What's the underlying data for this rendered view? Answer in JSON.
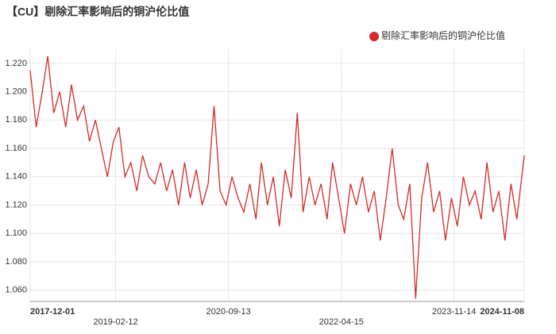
{
  "chart_data": {
    "type": "line",
    "title": "【CU】剔除汇率影响后的铜沪伦比值",
    "series": [
      {
        "name": "剔除汇率影响后的铜沪伦比值",
        "color": "#d42a2a",
        "values": [
          1.215,
          1.175,
          1.2,
          1.225,
          1.185,
          1.2,
          1.175,
          1.205,
          1.18,
          1.19,
          1.165,
          1.18,
          1.16,
          1.14,
          1.165,
          1.175,
          1.14,
          1.15,
          1.13,
          1.155,
          1.14,
          1.135,
          1.15,
          1.13,
          1.145,
          1.12,
          1.15,
          1.125,
          1.145,
          1.12,
          1.135,
          1.19,
          1.13,
          1.12,
          1.14,
          1.125,
          1.115,
          1.135,
          1.11,
          1.15,
          1.12,
          1.14,
          1.105,
          1.145,
          1.125,
          1.185,
          1.115,
          1.14,
          1.12,
          1.135,
          1.11,
          1.15,
          1.125,
          1.1,
          1.135,
          1.12,
          1.14,
          1.115,
          1.13,
          1.095,
          1.125,
          1.16,
          1.12,
          1.11,
          1.135,
          1.054,
          1.125,
          1.15,
          1.115,
          1.13,
          1.095,
          1.125,
          1.105,
          1.14,
          1.12,
          1.13,
          1.11,
          1.15,
          1.115,
          1.13,
          1.095,
          1.135,
          1.11,
          1.155
        ]
      }
    ],
    "x": [
      "2017-12-01",
      "2018-01-01",
      "2018-02-01",
      "2018-03-01",
      "2018-04-01",
      "2018-05-01",
      "2018-06-01",
      "2018-07-01",
      "2018-08-01",
      "2018-09-01",
      "2018-10-01",
      "2018-11-01",
      "2018-12-01",
      "2019-01-01",
      "2019-02-01",
      "2019-03-01",
      "2019-04-01",
      "2019-05-01",
      "2019-06-01",
      "2019-07-01",
      "2019-08-01",
      "2019-09-01",
      "2019-10-01",
      "2019-11-01",
      "2019-12-01",
      "2020-01-01",
      "2020-02-01",
      "2020-03-01",
      "2020-04-01",
      "2020-05-01",
      "2020-06-01",
      "2020-07-01",
      "2020-08-01",
      "2020-09-01",
      "2020-10-01",
      "2020-11-01",
      "2020-12-01",
      "2021-01-01",
      "2021-02-01",
      "2021-03-01",
      "2021-04-01",
      "2021-05-01",
      "2021-06-01",
      "2021-07-01",
      "2021-08-01",
      "2021-09-01",
      "2021-10-01",
      "2021-11-01",
      "2021-12-01",
      "2022-01-01",
      "2022-02-01",
      "2022-03-01",
      "2022-04-01",
      "2022-05-01",
      "2022-06-01",
      "2022-07-01",
      "2022-08-01",
      "2022-09-01",
      "2022-10-01",
      "2022-11-01",
      "2022-12-01",
      "2023-01-01",
      "2023-02-01",
      "2023-03-01",
      "2023-04-01",
      "2023-05-01",
      "2023-06-01",
      "2023-07-01",
      "2023-08-01",
      "2023-09-01",
      "2023-10-01",
      "2023-11-01",
      "2023-12-01",
      "2024-01-01",
      "2024-02-01",
      "2024-03-01",
      "2024-04-01",
      "2024-05-01",
      "2024-06-01",
      "2024-07-01",
      "2024-08-01",
      "2024-09-01",
      "2024-10-01",
      "2024-11-08"
    ],
    "xlim": [
      "2017-12-01",
      "2024-11-08"
    ],
    "xticks": [
      "2017-12-01",
      "2019-02-12",
      "2020-09-13",
      "2022-04-15",
      "2023-11-14",
      "2024-11-08"
    ],
    "ylim": [
      1.052,
      1.23
    ],
    "yticks": [
      {
        "value": 1.06,
        "label": "1.060"
      },
      {
        "value": 1.08,
        "label": "1.080"
      },
      {
        "value": 1.1,
        "label": "1.100"
      },
      {
        "value": 1.12,
        "label": "1.120"
      },
      {
        "value": 1.14,
        "label": "1.140"
      },
      {
        "value": 1.16,
        "label": "1.160"
      },
      {
        "value": 1.18,
        "label": "1.180"
      },
      {
        "value": 1.2,
        "label": "1.200"
      },
      {
        "value": 1.22,
        "label": "1.220"
      }
    ],
    "grid": true
  }
}
